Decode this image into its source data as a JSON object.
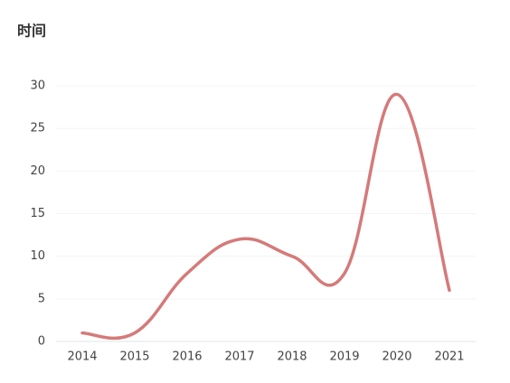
{
  "chart_data": {
    "type": "line",
    "title": "时间",
    "categories": [
      "2014",
      "2015",
      "2016",
      "2017",
      "2018",
      "2019",
      "2020",
      "2021"
    ],
    "series": [
      {
        "name": "时间",
        "color": "#d57a7a",
        "values": [
          1,
          1,
          8,
          12,
          10,
          8,
          29,
          6
        ]
      }
    ],
    "ylim": [
      0,
      30
    ],
    "yticks": [
      0,
      5,
      10,
      15,
      20,
      25,
      30
    ],
    "grid": true
  }
}
